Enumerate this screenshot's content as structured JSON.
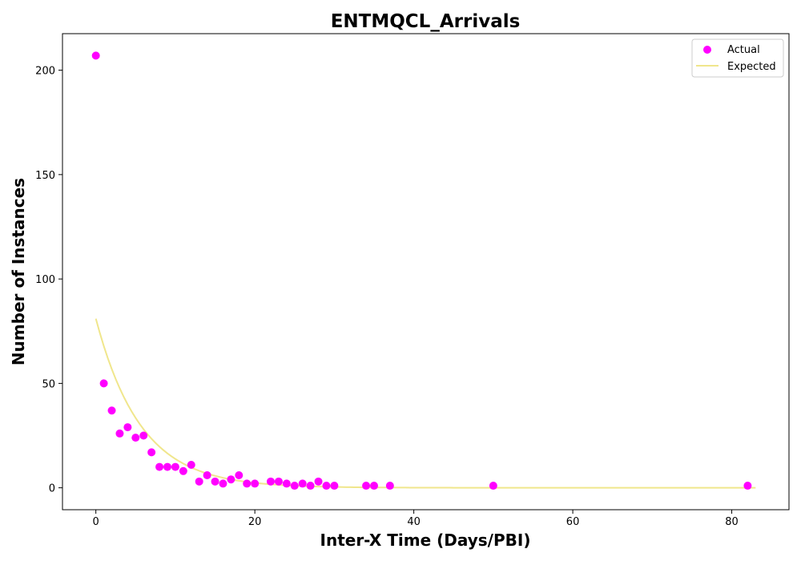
{
  "chart_data": {
    "type": "scatter",
    "title": "ENTMQCL_Arrivals",
    "xlabel": "Inter-X Time (Days/PBI)",
    "ylabel": "Number of Instances",
    "xlim": [
      -4.2,
      87.2
    ],
    "ylim": [
      -10.5,
      217.5
    ],
    "xticks": [
      0,
      20,
      40,
      60,
      80
    ],
    "yticks": [
      0,
      50,
      100,
      150,
      200
    ],
    "grid": false,
    "legend_position": "top-right",
    "series": [
      {
        "name": "Actual",
        "kind": "scatter",
        "color": "#ff00ff",
        "points": [
          [
            0,
            207
          ],
          [
            1,
            50
          ],
          [
            2,
            37
          ],
          [
            3,
            26
          ],
          [
            4,
            29
          ],
          [
            5,
            24
          ],
          [
            6,
            25
          ],
          [
            7,
            17
          ],
          [
            8,
            10
          ],
          [
            9,
            10
          ],
          [
            10,
            10
          ],
          [
            11,
            8
          ],
          [
            12,
            11
          ],
          [
            13,
            3
          ],
          [
            14,
            6
          ],
          [
            15,
            3
          ],
          [
            16,
            2
          ],
          [
            17,
            4
          ],
          [
            18,
            6
          ],
          [
            19,
            2
          ],
          [
            20,
            2
          ],
          [
            22,
            3
          ],
          [
            23,
            3
          ],
          [
            24,
            2
          ],
          [
            25,
            1
          ],
          [
            26,
            2
          ],
          [
            27,
            1
          ],
          [
            28,
            3
          ],
          [
            29,
            1
          ],
          [
            30,
            1
          ],
          [
            34,
            1
          ],
          [
            35,
            1
          ],
          [
            37,
            1
          ],
          [
            50,
            1
          ],
          [
            82,
            1
          ]
        ]
      },
      {
        "name": "Expected",
        "kind": "line",
        "color": "#f0e68c",
        "model": {
          "form": "exponential",
          "a": 81,
          "b": 0.1768
        },
        "x_range": [
          0,
          83
        ]
      }
    ]
  }
}
